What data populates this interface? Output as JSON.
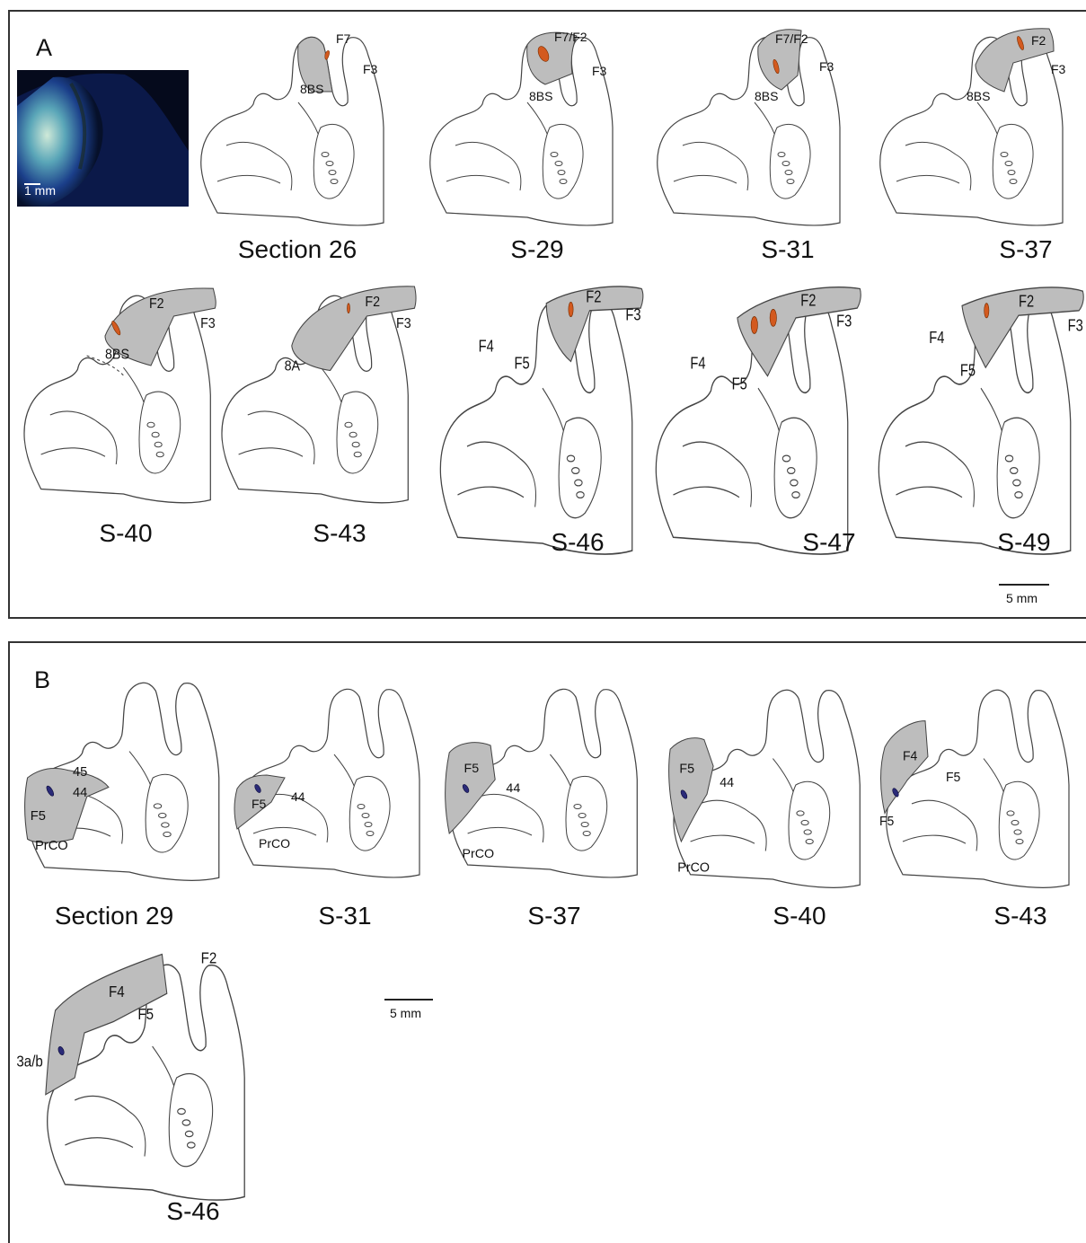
{
  "colors": {
    "orange": "#d35a1f",
    "navy": "#2a2a78",
    "gray_area": "#bdbdbd"
  },
  "panel_a": {
    "letter": "A",
    "photo_scale_label": "1 mm",
    "scale_label": "5 mm",
    "captions": [
      "Section 26",
      "S-29",
      "S-31",
      "S-37",
      "S-40",
      "S-43",
      "S-46",
      "S-47",
      "S-49"
    ],
    "labels": {
      "s26": [
        "F7",
        "F3",
        "8BS"
      ],
      "s29": [
        "F7/F2",
        "F3",
        "8BS"
      ],
      "s31": [
        "F7/F2",
        "F3",
        "8BS"
      ],
      "s37": [
        "F2",
        "F3",
        "8BS"
      ],
      "s40": [
        "F2",
        "F3",
        "8BS"
      ],
      "s43": [
        "F2",
        "F3",
        "8A"
      ],
      "s46": [
        "F2",
        "F3",
        "F4",
        "F5"
      ],
      "s47": [
        "F2",
        "F3",
        "F4",
        "F5"
      ],
      "s49": [
        "F2",
        "F3",
        "F4",
        "F5"
      ]
    }
  },
  "panel_b": {
    "letter": "B",
    "scale_label": "5 mm",
    "captions": [
      "Section 29",
      "S-31",
      "S-37",
      "S-40",
      "S-43",
      "S-46"
    ],
    "labels": {
      "s29": [
        "45",
        "44",
        "F5",
        "PrCO"
      ],
      "s31": [
        "F5",
        "44",
        "PrCO"
      ],
      "s37": [
        "F5",
        "44",
        "PrCO"
      ],
      "s40": [
        "F5",
        "44",
        "PrCO"
      ],
      "s43": [
        "F4",
        "F5",
        "F5"
      ],
      "s46": [
        "F2",
        "F4",
        "F5",
        "3a/b"
      ]
    }
  }
}
